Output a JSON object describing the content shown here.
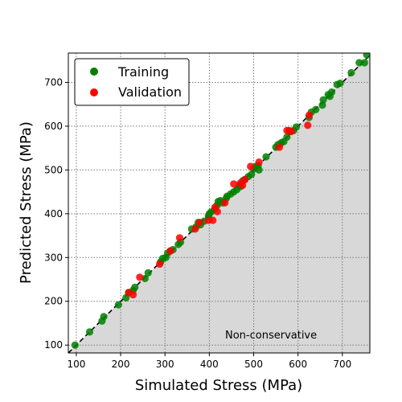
{
  "chart_data": {
    "type": "scatter",
    "xlabel": "Simulated Stress (MPa)",
    "ylabel": "Predicted Stress (MPa)",
    "xlim": [
      82,
      762
    ],
    "ylim": [
      82,
      767
    ],
    "xticks": [
      100,
      200,
      300,
      400,
      500,
      600,
      700
    ],
    "yticks": [
      100,
      200,
      300,
      400,
      500,
      600,
      700
    ],
    "grid": true,
    "grid_style": "dotted",
    "legend_position": "top-left",
    "shaded_region": "below y = x",
    "shade_color": "#d8d8d8",
    "reference_line": "y = x (dashed)",
    "annotation": "Non-conservative",
    "series": [
      {
        "name": "Training",
        "color": "#008000",
        "points": [
          [
            97,
            100
          ],
          [
            130,
            130
          ],
          [
            158,
            155
          ],
          [
            162,
            165
          ],
          [
            195,
            192
          ],
          [
            212,
            208
          ],
          [
            218,
            220
          ],
          [
            228,
            225
          ],
          [
            232,
            232
          ],
          [
            255,
            252
          ],
          [
            262,
            265
          ],
          [
            290,
            290
          ],
          [
            295,
            298
          ],
          [
            302,
            300
          ],
          [
            306,
            310
          ],
          [
            312,
            315
          ],
          [
            318,
            318
          ],
          [
            330,
            330
          ],
          [
            335,
            335
          ],
          [
            360,
            365
          ],
          [
            370,
            370
          ],
          [
            375,
            380
          ],
          [
            380,
            375
          ],
          [
            388,
            383
          ],
          [
            398,
            395
          ],
          [
            400,
            400
          ],
          [
            404,
            404
          ],
          [
            412,
            410
          ],
          [
            418,
            420
          ],
          [
            420,
            428
          ],
          [
            425,
            430
          ],
          [
            430,
            425
          ],
          [
            438,
            435
          ],
          [
            440,
            440
          ],
          [
            448,
            445
          ],
          [
            455,
            450
          ],
          [
            462,
            455
          ],
          [
            468,
            465
          ],
          [
            470,
            462
          ],
          [
            475,
            475
          ],
          [
            480,
            478
          ],
          [
            488,
            485
          ],
          [
            495,
            490
          ],
          [
            500,
            502
          ],
          [
            505,
            508
          ],
          [
            510,
            510
          ],
          [
            512,
            500
          ],
          [
            528,
            530
          ],
          [
            550,
            552
          ],
          [
            555,
            558
          ],
          [
            562,
            562
          ],
          [
            568,
            565
          ],
          [
            575,
            575
          ],
          [
            582,
            588
          ],
          [
            590,
            590
          ],
          [
            596,
            598
          ],
          [
            625,
            620
          ],
          [
            630,
            632
          ],
          [
            640,
            638
          ],
          [
            655,
            648
          ],
          [
            657,
            660
          ],
          [
            668,
            672
          ],
          [
            672,
            668
          ],
          [
            676,
            678
          ],
          [
            688,
            695
          ],
          [
            695,
            698
          ],
          [
            720,
            722
          ],
          [
            738,
            745
          ],
          [
            750,
            745
          ],
          [
            755,
            763
          ]
        ]
      },
      {
        "name": "Validation",
        "color": "#ff0000",
        "points": [
          [
            218,
            220
          ],
          [
            228,
            215
          ],
          [
            243,
            255
          ],
          [
            288,
            285
          ],
          [
            312,
            315
          ],
          [
            333,
            345
          ],
          [
            368,
            365
          ],
          [
            378,
            380
          ],
          [
            398,
            385
          ],
          [
            408,
            385
          ],
          [
            413,
            415
          ],
          [
            418,
            405
          ],
          [
            435,
            425
          ],
          [
            455,
            468
          ],
          [
            470,
            470
          ],
          [
            475,
            465
          ],
          [
            480,
            478
          ],
          [
            493,
            508
          ],
          [
            512,
            518
          ],
          [
            558,
            552
          ],
          [
            575,
            590
          ],
          [
            580,
            590
          ],
          [
            585,
            588
          ],
          [
            622,
            602
          ],
          [
            625,
            625
          ]
        ]
      }
    ]
  }
}
